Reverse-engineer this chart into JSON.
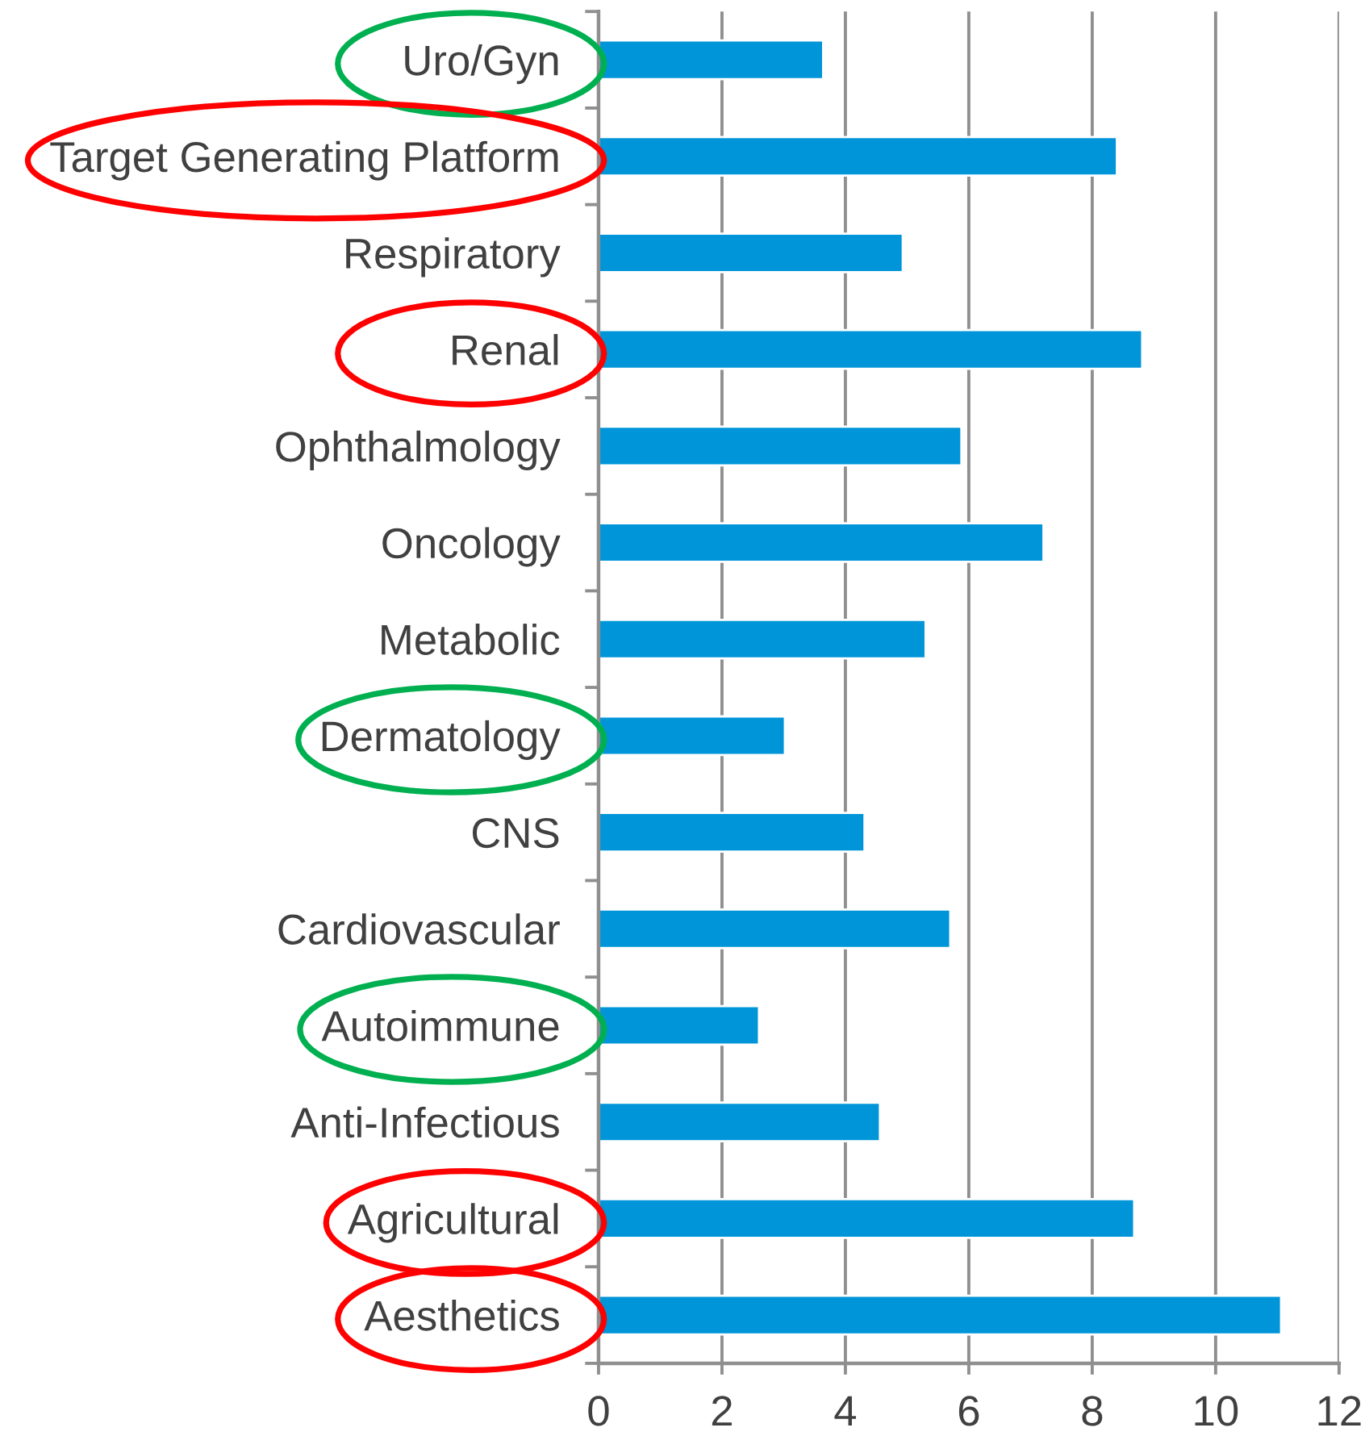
{
  "chart_data": {
    "type": "bar",
    "orientation": "horizontal",
    "categories": [
      "Uro/Gyn",
      "Target Generating Platform",
      "Respiratory",
      "Renal",
      "Ophthalmology",
      "Oncology",
      "Metabolic",
      "Dermatology",
      "CNS",
      "Cardiovascular",
      "Autoimmune",
      "Anti-Infectious",
      "Agricultural",
      "Aesthetics"
    ],
    "values": [
      3.64,
      8.4,
      4.93,
      8.81,
      5.88,
      7.21,
      5.3,
      3.02,
      4.31,
      5.7,
      2.6,
      4.56,
      8.68,
      11.06
    ],
    "color": "#0095d9",
    "xlim": [
      0,
      12
    ],
    "xticks": [
      0,
      2,
      4,
      6,
      8,
      10,
      12
    ],
    "grid": "x"
  }
}
